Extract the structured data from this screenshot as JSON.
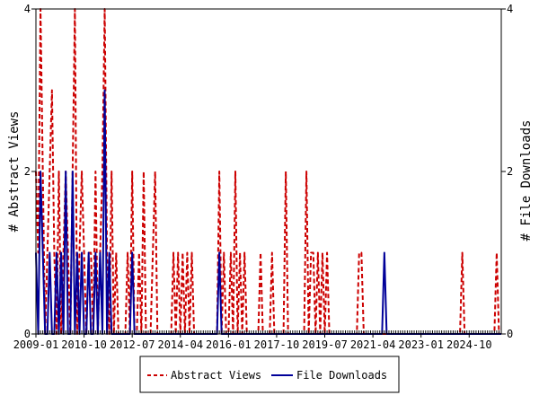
{
  "chart_data": {
    "type": "line",
    "title": "",
    "ylabel_left": "# Abstract Views",
    "ylabel_right": "# File Downloads",
    "x_start": "2009-01",
    "x_end": "2025-12",
    "x_ticks": [
      "2009-01",
      "2010-10",
      "2012-07",
      "2014-04",
      "2016-01",
      "2017-10",
      "2019-07",
      "2021-04",
      "2023-01",
      "2024-10"
    ],
    "ylim_left": [
      0,
      4
    ],
    "ylim_right": [
      0,
      4
    ],
    "y_ticks_left": [
      "0",
      "2",
      "4"
    ],
    "y_ticks_right": [
      "0",
      "2",
      "4"
    ],
    "legend_position": "bottom",
    "series": [
      {
        "name": "Abstract Views",
        "color": "#cc0000",
        "style": "dashed",
        "values": [
          2,
          1,
          4,
          2,
          0,
          1,
          2,
          3,
          1,
          0,
          2,
          0,
          1,
          2,
          1,
          0,
          2,
          4,
          0,
          1,
          2,
          1,
          0,
          1,
          1,
          0,
          2,
          0,
          1,
          2,
          4,
          1,
          0,
          2,
          0,
          1,
          0,
          0,
          0,
          0,
          1,
          0,
          2,
          0,
          0,
          1,
          0,
          2,
          0,
          0,
          0,
          1,
          2,
          0,
          0,
          0,
          0,
          0,
          0,
          0,
          1,
          0,
          1,
          0,
          1,
          0,
          1,
          0,
          1,
          0,
          0,
          0,
          0,
          0,
          0,
          0,
          0,
          0,
          0,
          0,
          2,
          0,
          1,
          0,
          0,
          1,
          0,
          2,
          0,
          1,
          0,
          1,
          0,
          0,
          0,
          0,
          0,
          0,
          1,
          0,
          0,
          0,
          0,
          1,
          0,
          0,
          0,
          0,
          0,
          2,
          0,
          0,
          0,
          0,
          0,
          0,
          0,
          0,
          2,
          0,
          1,
          1,
          0,
          1,
          0,
          1,
          0,
          1,
          0,
          0,
          0,
          0,
          0,
          0,
          0,
          0,
          0,
          0,
          0,
          0,
          0,
          1,
          1,
          0,
          0,
          0,
          0,
          0,
          0,
          0,
          0,
          0,
          0,
          0,
          0,
          0,
          0,
          0,
          0,
          0,
          0,
          0,
          0,
          0,
          0,
          0,
          0,
          0,
          0,
          0,
          0,
          0,
          0,
          0,
          0,
          0,
          0,
          0,
          0,
          0,
          0,
          0,
          0,
          0,
          0,
          0,
          1,
          0,
          0,
          0,
          0,
          0,
          0,
          0,
          0,
          0,
          0,
          0,
          0,
          0,
          0,
          1,
          0,
          0
        ]
      },
      {
        "name": "File Downloads",
        "color": "#000099",
        "style": "solid",
        "values": [
          1,
          0,
          2,
          1,
          0,
          0,
          1,
          0,
          0,
          1,
          0,
          1,
          0,
          2,
          0,
          0,
          2,
          0,
          1,
          0,
          1,
          0,
          0,
          1,
          0,
          0,
          1,
          0,
          1,
          0,
          3,
          0,
          1,
          0,
          0,
          0,
          0,
          0,
          0,
          0,
          0,
          0,
          1,
          0,
          0,
          0,
          0,
          0,
          0,
          0,
          0,
          0,
          0,
          0,
          0,
          0,
          0,
          0,
          0,
          0,
          0,
          0,
          0,
          0,
          0,
          0,
          0,
          0,
          0,
          0,
          0,
          0,
          0,
          0,
          0,
          0,
          0,
          0,
          0,
          0,
          1,
          0,
          0,
          0,
          0,
          0,
          0,
          0,
          0,
          0,
          0,
          0,
          0,
          0,
          0,
          0,
          0,
          0,
          0,
          0,
          0,
          0,
          0,
          0,
          0,
          0,
          0,
          0,
          0,
          0,
          0,
          0,
          0,
          0,
          0,
          0,
          0,
          0,
          0,
          0,
          0,
          0,
          0,
          0,
          0,
          0,
          0,
          0,
          0,
          0,
          0,
          0,
          0,
          0,
          0,
          0,
          0,
          0,
          0,
          0,
          0,
          0,
          0,
          0,
          0,
          0,
          0,
          0,
          0,
          0,
          0,
          0,
          1,
          0,
          0,
          0,
          0,
          0,
          0,
          0,
          0,
          0,
          0,
          0,
          0,
          0,
          0,
          0,
          0,
          0,
          0,
          0,
          0,
          0,
          0,
          0,
          0,
          0,
          0,
          0,
          0,
          0,
          0,
          0,
          0,
          0,
          0,
          0,
          0,
          0,
          0,
          0,
          0,
          0,
          0,
          0,
          0,
          0,
          0,
          0,
          0,
          0,
          0,
          0
        ]
      }
    ]
  }
}
